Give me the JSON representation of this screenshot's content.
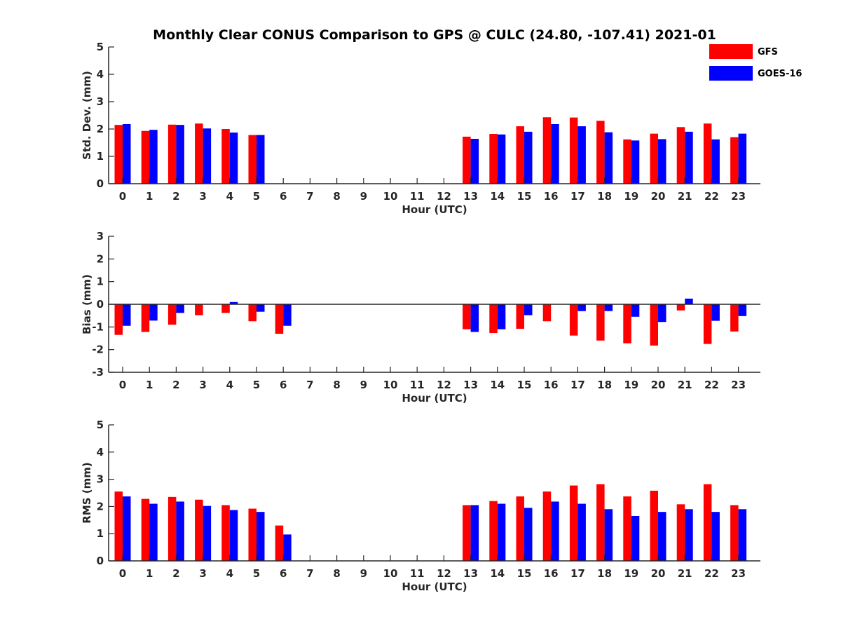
{
  "title": "Monthly Clear CONUS Comparison to GPS @ CULC (24.80, -107.41) 2021-01",
  "legend": {
    "items": [
      {
        "label": "GFS",
        "color": "#ff0000"
      },
      {
        "label": "GOES-16",
        "color": "#0000ff"
      }
    ],
    "placement": "top-right"
  },
  "chart_data": [
    {
      "type": "bar",
      "xlabel": "Hour (UTC)",
      "ylabel": "Std. Dev. (mm)",
      "ylim": [
        0,
        5
      ],
      "yticks": [
        0,
        1,
        2,
        3,
        4,
        5
      ],
      "categories": [
        "0",
        "1",
        "2",
        "3",
        "4",
        "5",
        "6",
        "7",
        "8",
        "9",
        "10",
        "11",
        "12",
        "13",
        "14",
        "15",
        "16",
        "17",
        "18",
        "19",
        "20",
        "21",
        "22",
        "23"
      ],
      "series": [
        {
          "name": "GFS",
          "color": "#ff0000",
          "values": [
            2.15,
            1.93,
            2.16,
            2.2,
            2.0,
            1.78,
            null,
            null,
            null,
            null,
            null,
            null,
            null,
            1.72,
            1.82,
            2.1,
            2.43,
            2.42,
            2.3,
            1.62,
            1.83,
            2.07,
            2.2,
            1.7
          ]
        },
        {
          "name": "GOES-16",
          "color": "#0000ff",
          "values": [
            2.18,
            1.97,
            2.15,
            2.02,
            1.87,
            1.78,
            null,
            null,
            null,
            null,
            null,
            null,
            null,
            1.64,
            1.8,
            1.9,
            2.18,
            2.1,
            1.88,
            1.58,
            1.63,
            1.9,
            1.62,
            1.83
          ]
        }
      ]
    },
    {
      "type": "bar",
      "xlabel": "Hour (UTC)",
      "ylabel": "Bias (mm)",
      "ylim": [
        -3,
        3
      ],
      "yticks": [
        -3,
        -2,
        -1,
        0,
        1,
        2,
        3
      ],
      "zero_line": true,
      "categories": [
        "0",
        "1",
        "2",
        "3",
        "4",
        "5",
        "6",
        "7",
        "8",
        "9",
        "10",
        "11",
        "12",
        "13",
        "14",
        "15",
        "16",
        "17",
        "18",
        "19",
        "20",
        "21",
        "22",
        "23"
      ],
      "series": [
        {
          "name": "GFS",
          "color": "#ff0000",
          "values": [
            -1.35,
            -1.22,
            -0.9,
            -0.48,
            -0.38,
            -0.75,
            -1.3,
            null,
            null,
            null,
            null,
            null,
            null,
            -1.1,
            -1.27,
            -1.08,
            -0.75,
            -1.38,
            -1.6,
            -1.72,
            -1.82,
            -0.27,
            -1.75,
            -1.2
          ]
        },
        {
          "name": "GOES-16",
          "color": "#0000ff",
          "values": [
            -0.95,
            -0.72,
            -0.38,
            0.02,
            0.1,
            -0.33,
            -0.95,
            null,
            null,
            null,
            null,
            null,
            null,
            -1.22,
            -1.1,
            -0.48,
            null,
            -0.3,
            -0.3,
            -0.55,
            -0.78,
            0.25,
            -0.73,
            -0.52
          ]
        }
      ]
    },
    {
      "type": "bar",
      "xlabel": "Hour (UTC)",
      "ylabel": "RMS (mm)",
      "ylim": [
        0,
        5
      ],
      "yticks": [
        0,
        1,
        2,
        3,
        4,
        5
      ],
      "categories": [
        "0",
        "1",
        "2",
        "3",
        "4",
        "5",
        "6",
        "7",
        "8",
        "9",
        "10",
        "11",
        "12",
        "13",
        "14",
        "15",
        "16",
        "17",
        "18",
        "19",
        "20",
        "21",
        "22",
        "23"
      ],
      "series": [
        {
          "name": "GFS",
          "color": "#ff0000",
          "values": [
            2.55,
            2.28,
            2.35,
            2.25,
            2.05,
            1.92,
            1.3,
            null,
            null,
            null,
            null,
            null,
            null,
            2.05,
            2.2,
            2.37,
            2.55,
            2.77,
            2.82,
            2.37,
            2.58,
            2.08,
            2.82,
            2.05
          ]
        },
        {
          "name": "GOES-16",
          "color": "#0000ff",
          "values": [
            2.37,
            2.1,
            2.18,
            2.02,
            1.87,
            1.8,
            0.97,
            null,
            null,
            null,
            null,
            null,
            null,
            2.05,
            2.1,
            1.95,
            2.18,
            2.1,
            1.9,
            1.65,
            1.8,
            1.9,
            1.8,
            1.9
          ]
        }
      ]
    }
  ]
}
